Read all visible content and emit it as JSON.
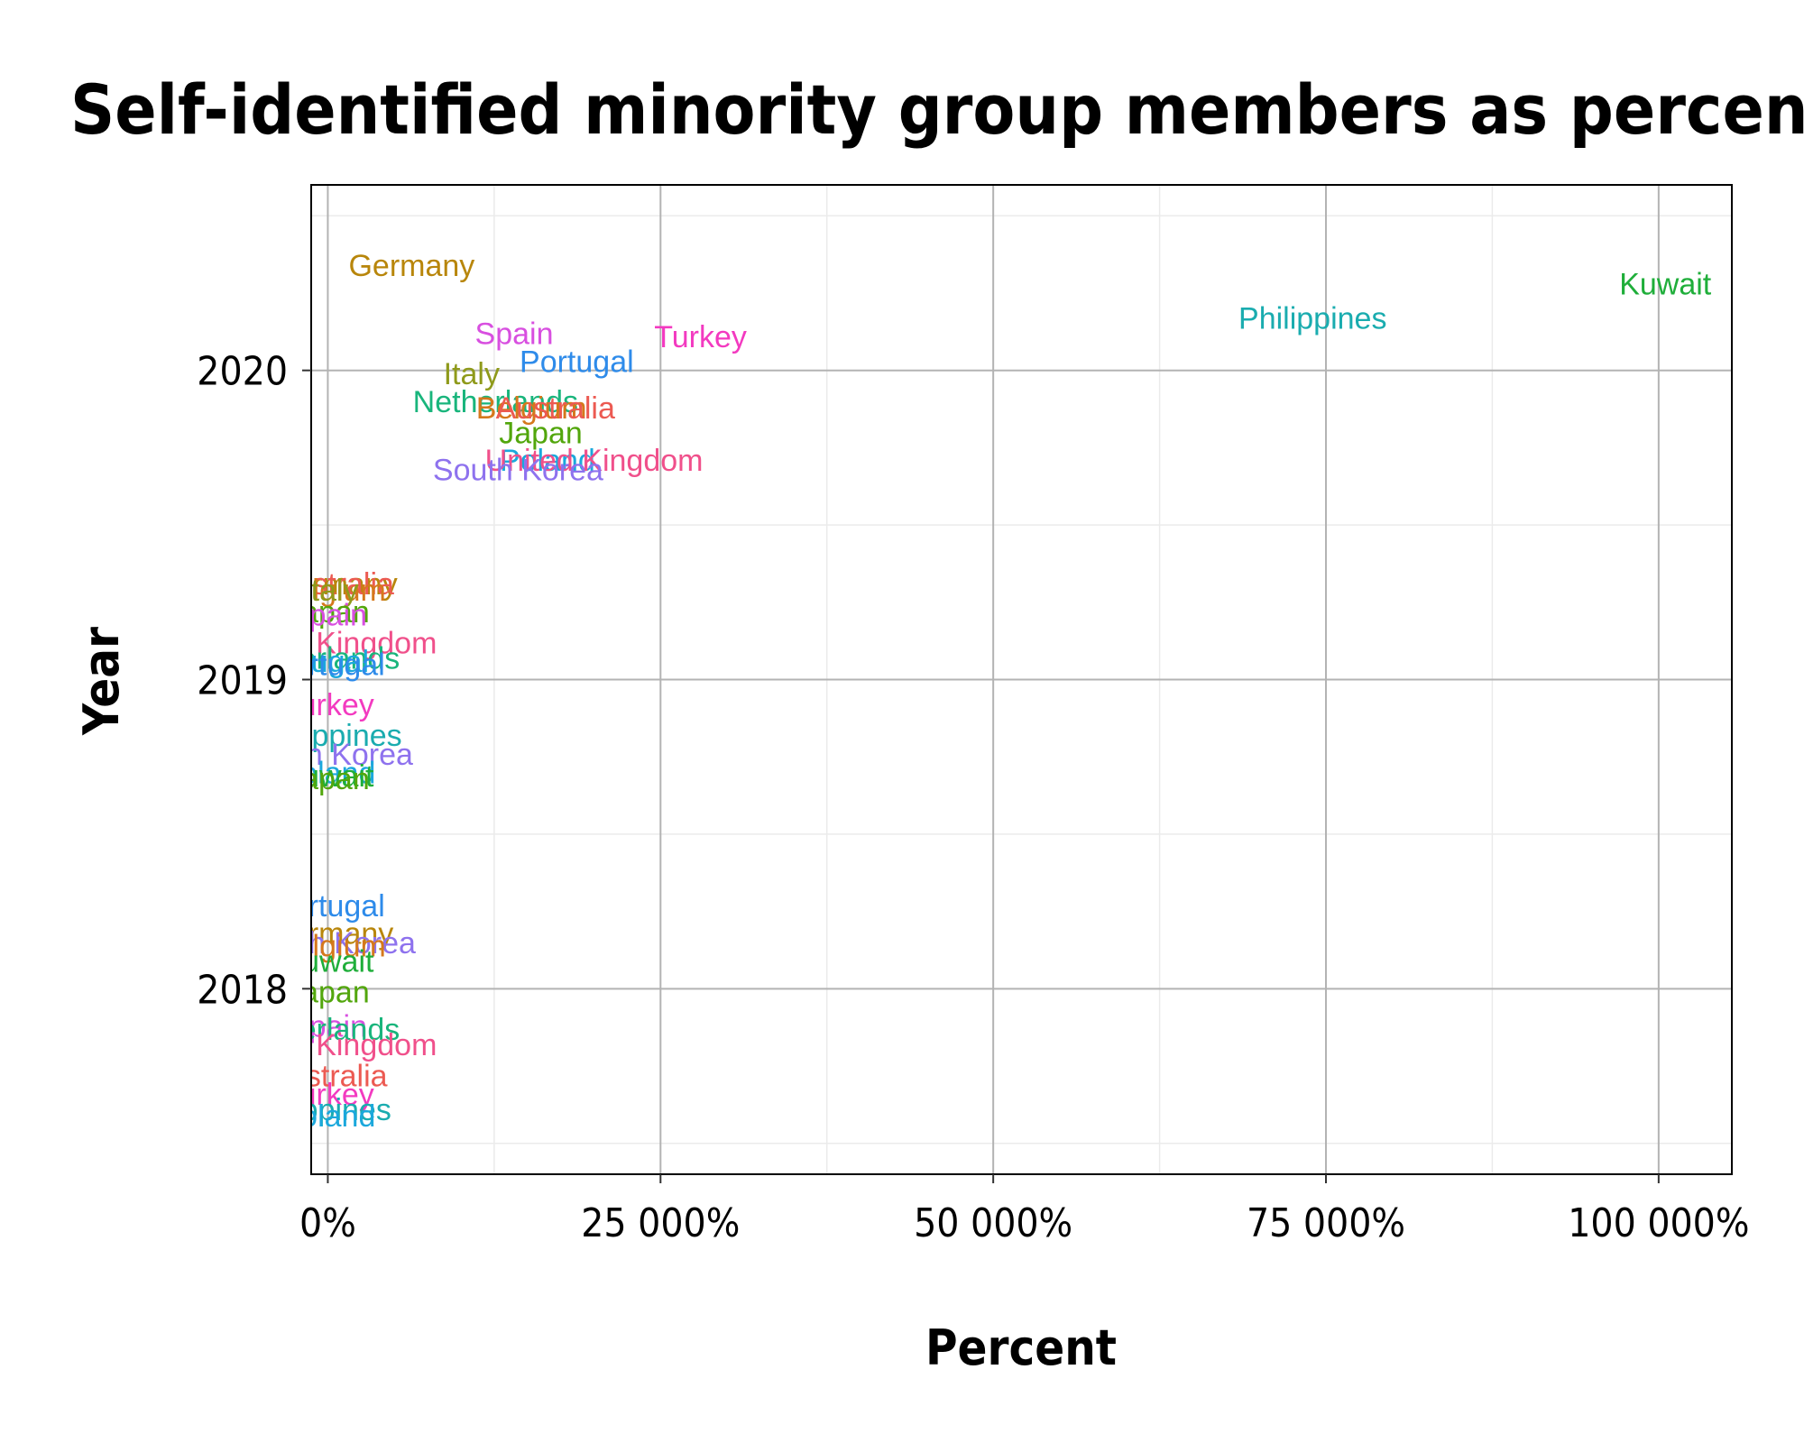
{
  "chart_data": {
    "type": "scatter",
    "title": "Self-identified minority group members as percent of count",
    "xlabel": "Percent",
    "ylabel": "Year",
    "xlim": [
      -1250,
      105500
    ],
    "ylim": [
      2017.4,
      2020.6
    ],
    "x_ticks": [
      0,
      25000,
      50000,
      75000,
      100000
    ],
    "x_tick_labels": [
      "0%",
      "25 000%",
      "50 000%",
      "75 000%",
      "100 000%"
    ],
    "y_ticks": [
      2018,
      2019,
      2020
    ],
    "y_tick_labels": [
      "2018",
      "2019",
      "2020"
    ],
    "grid": true,
    "legend": "none",
    "points": [
      {
        "label": "Germany",
        "x": 6300,
        "y": 2020.34,
        "color": "#b8860b"
      },
      {
        "label": "Kuwait",
        "x": 100500,
        "y": 2020.28,
        "color": "#1fae3a"
      },
      {
        "label": "Philippines",
        "x": 74000,
        "y": 2020.17,
        "color": "#1aacaf"
      },
      {
        "label": "Spain",
        "x": 14000,
        "y": 2020.12,
        "color": "#d84fe0"
      },
      {
        "label": "Turkey",
        "x": 28000,
        "y": 2020.11,
        "color": "#f33ac0"
      },
      {
        "label": "Portugal",
        "x": 18700,
        "y": 2020.03,
        "color": "#2e8bea"
      },
      {
        "label": "Italy",
        "x": 10800,
        "y": 2019.99,
        "color": "#8f9a1b"
      },
      {
        "label": "Netherlands",
        "x": 12600,
        "y": 2019.9,
        "color": "#19b57c"
      },
      {
        "label": "Belgium",
        "x": 15300,
        "y": 2019.88,
        "color": "#d5781c"
      },
      {
        "label": "Australia",
        "x": 17100,
        "y": 2019.88,
        "color": "#ec5a52"
      },
      {
        "label": "Japan",
        "x": 16000,
        "y": 2019.8,
        "color": "#52a60c"
      },
      {
        "label": "Poland",
        "x": 16500,
        "y": 2019.71,
        "color": "#1ba8dc"
      },
      {
        "label": "United Kingdom",
        "x": 20000,
        "y": 2019.71,
        "color": "#f0508b"
      },
      {
        "label": "South Korea",
        "x": 14300,
        "y": 2019.68,
        "color": "#8e72ee"
      },
      {
        "label": "Germany",
        "x": 500,
        "y": 2019.31,
        "color": "#b8860b"
      },
      {
        "label": "Australia",
        "x": 500,
        "y": 2019.31,
        "color": "#ec5a52"
      },
      {
        "label": "Belgium",
        "x": 200,
        "y": 2019.29,
        "color": "#d5781c"
      },
      {
        "label": "Italy",
        "x": 200,
        "y": 2019.29,
        "color": "#8f9a1b"
      },
      {
        "label": "Japan",
        "x": 0,
        "y": 2019.22,
        "color": "#52a60c"
      },
      {
        "label": "Spain",
        "x": 0,
        "y": 2019.21,
        "color": "#d84fe0"
      },
      {
        "label": "United Kingdom",
        "x": 0,
        "y": 2019.12,
        "color": "#f0508b"
      },
      {
        "label": "Netherlands",
        "x": -800,
        "y": 2019.07,
        "color": "#19b57c"
      },
      {
        "label": "Portugal",
        "x": -1200,
        "y": 2019.06,
        "color": "#1ba8dc"
      },
      {
        "label": "Portugal",
        "x": 0,
        "y": 2019.05,
        "color": "#2e8bea"
      },
      {
        "label": "Turkey",
        "x": 0,
        "y": 2018.92,
        "color": "#f33ac0"
      },
      {
        "label": "Philippines",
        "x": 0,
        "y": 2018.82,
        "color": "#1aacaf"
      },
      {
        "label": "South Korea",
        "x": 0,
        "y": 2018.76,
        "color": "#8e72ee"
      },
      {
        "label": "Poland",
        "x": 0,
        "y": 2018.7,
        "color": "#1ba8dc"
      },
      {
        "label": "Kuwait",
        "x": 0,
        "y": 2018.69,
        "color": "#1fae3a"
      },
      {
        "label": "Japan",
        "x": 0,
        "y": 2018.68,
        "color": "#52a60c"
      },
      {
        "label": "Portugal",
        "x": 0,
        "y": 2018.27,
        "color": "#2e8bea"
      },
      {
        "label": "Germany",
        "x": 200,
        "y": 2018.18,
        "color": "#b8860b"
      },
      {
        "label": "South Korea",
        "x": 200,
        "y": 2018.15,
        "color": "#8e72ee"
      },
      {
        "label": "Belgium",
        "x": 200,
        "y": 2018.14,
        "color": "#d5781c"
      },
      {
        "label": "Kuwait",
        "x": 0,
        "y": 2018.09,
        "color": "#1fae3a"
      },
      {
        "label": "Japan",
        "x": 0,
        "y": 2017.99,
        "color": "#52a60c"
      },
      {
        "label": "Spain",
        "x": 0,
        "y": 2017.88,
        "color": "#d84fe0"
      },
      {
        "label": "Netherlands",
        "x": -800,
        "y": 2017.87,
        "color": "#19b57c"
      },
      {
        "label": "United Kingdom",
        "x": 0,
        "y": 2017.82,
        "color": "#f0508b"
      },
      {
        "label": "Australia",
        "x": 0,
        "y": 2017.72,
        "color": "#ec5a52"
      },
      {
        "label": "Turkey",
        "x": 0,
        "y": 2017.66,
        "color": "#f33ac0"
      },
      {
        "label": "Philippines",
        "x": -800,
        "y": 2017.61,
        "color": "#1aacaf"
      },
      {
        "label": "Poland",
        "x": 0,
        "y": 2017.59,
        "color": "#1ba8dc"
      }
    ]
  }
}
